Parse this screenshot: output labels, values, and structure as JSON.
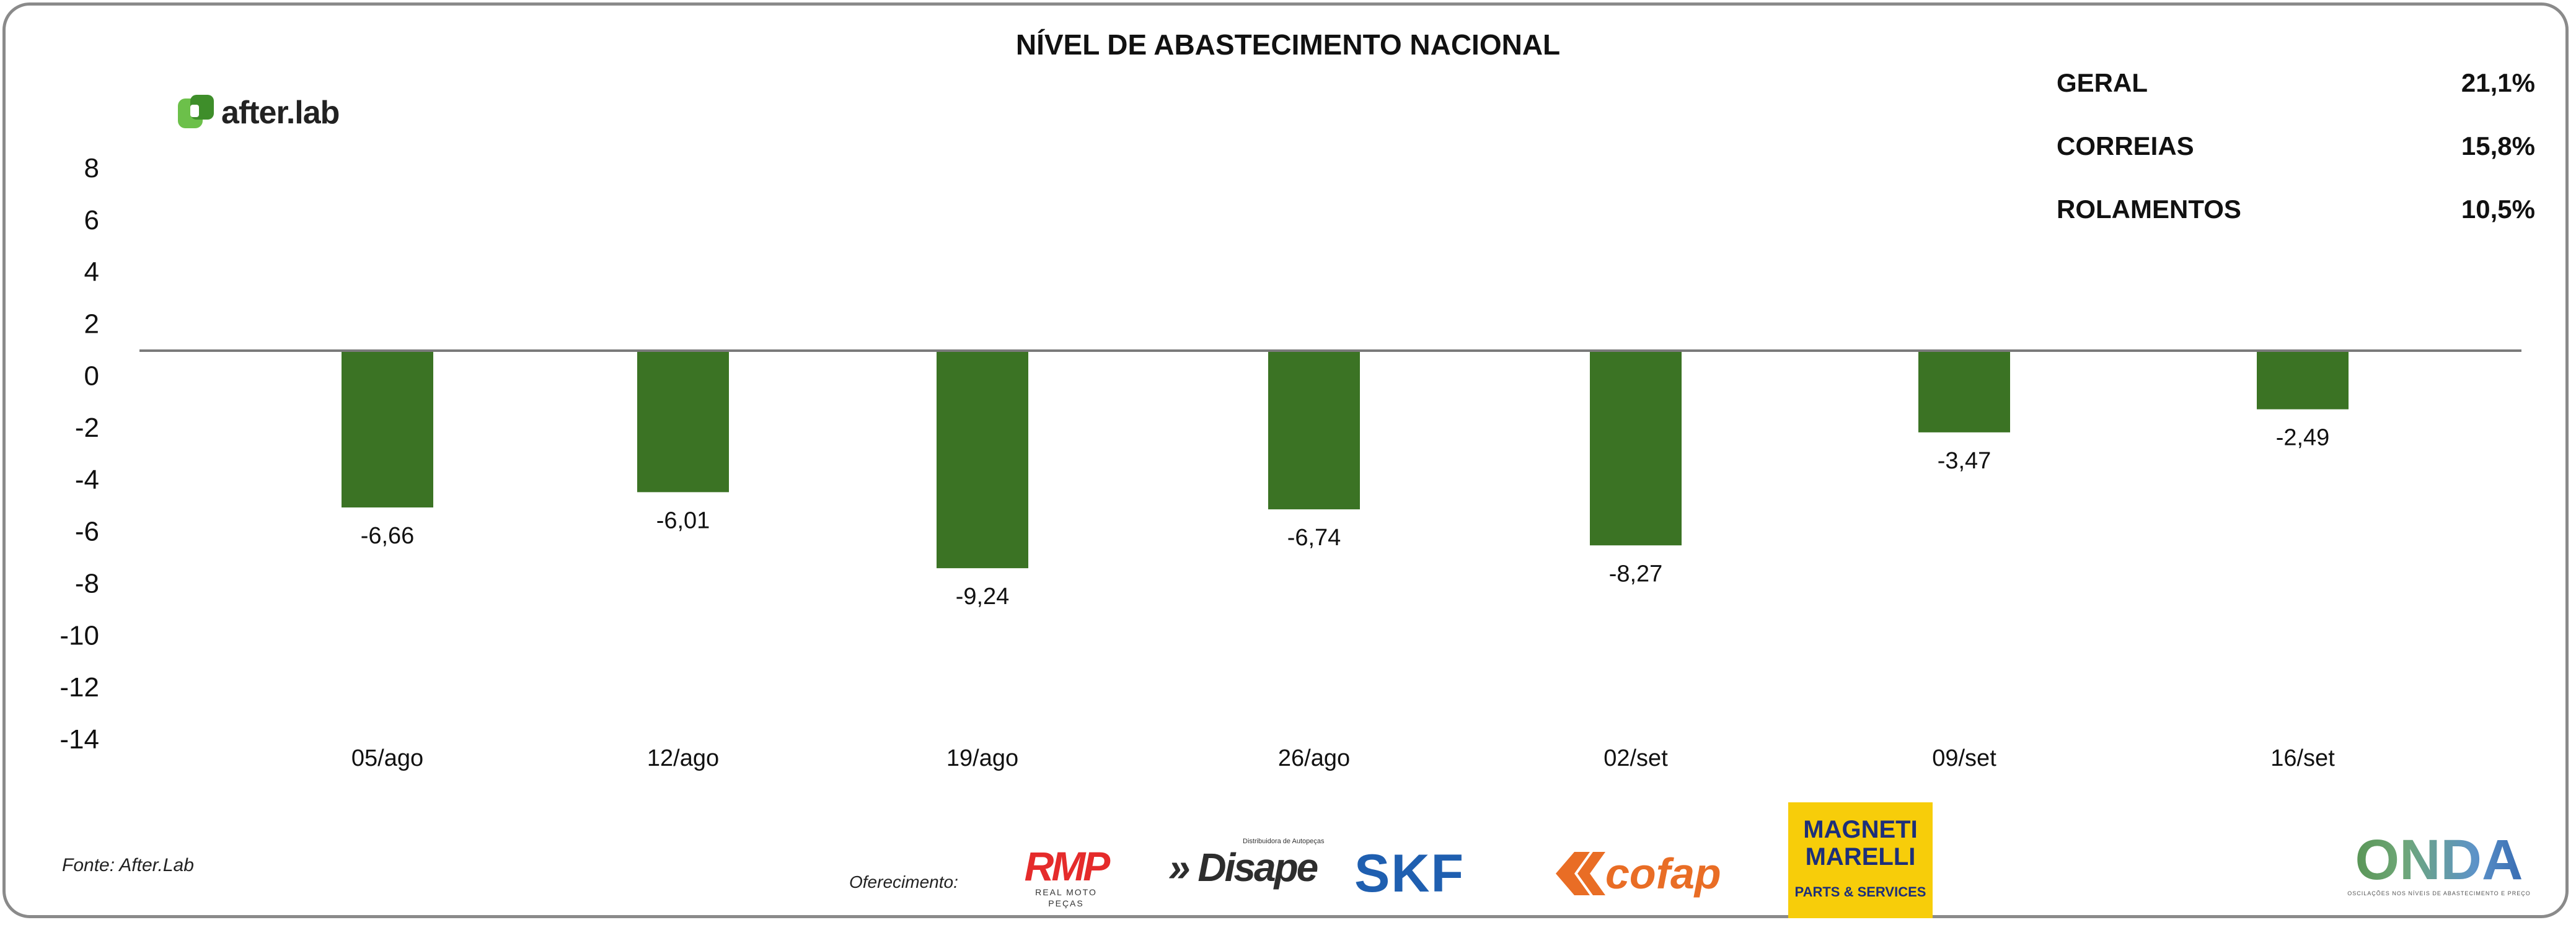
{
  "chart_data": {
    "type": "bar",
    "title": "NÍVEL DE ABASTECIMENTO NACIONAL",
    "categories": [
      "05/ago",
      "12/ago",
      "19/ago",
      "26/ago",
      "02/set",
      "09/set",
      "16/set"
    ],
    "values": [
      -6.66,
      -6.01,
      -9.24,
      -6.74,
      -8.27,
      -3.47,
      -2.49
    ],
    "data_labels": [
      "-6,66",
      "-6,01",
      "-9,24",
      "-6,74",
      "-8,27",
      "-3,47",
      "-2,49"
    ],
    "yticks": [
      "8",
      "6",
      "4",
      "2",
      "0",
      "-2",
      "-4",
      "-6",
      "-8",
      "-10",
      "-12",
      "-14"
    ],
    "ylim": [
      -14,
      8
    ],
    "xlabel": "",
    "ylabel": "",
    "grid": false,
    "bar_color": "#3b7324"
  },
  "summary": [
    {
      "label": "GERAL",
      "value": "21,1%"
    },
    {
      "label": "CORREIAS",
      "value": "15,8%"
    },
    {
      "label": "ROLAMENTOS",
      "value": "10,5%"
    }
  ],
  "brand": {
    "name": "after.lab",
    "color": "#6cc04a"
  },
  "source": "Fonte: After.Lab",
  "sponsors": {
    "label": "Oferecimento:",
    "logos": [
      "RMP",
      "REAL MOTO PEÇAS",
      "Disape",
      "Distribuidora de Autopeças",
      "SKF",
      "cofap",
      "MAGNETI MARELLI",
      "PARTS & SERVICES"
    ]
  },
  "onda": {
    "name": "ONDA",
    "tagline": "OSCILAÇÕES NOS NÍVEIS DE ABASTECIMENTO E PREÇO"
  }
}
